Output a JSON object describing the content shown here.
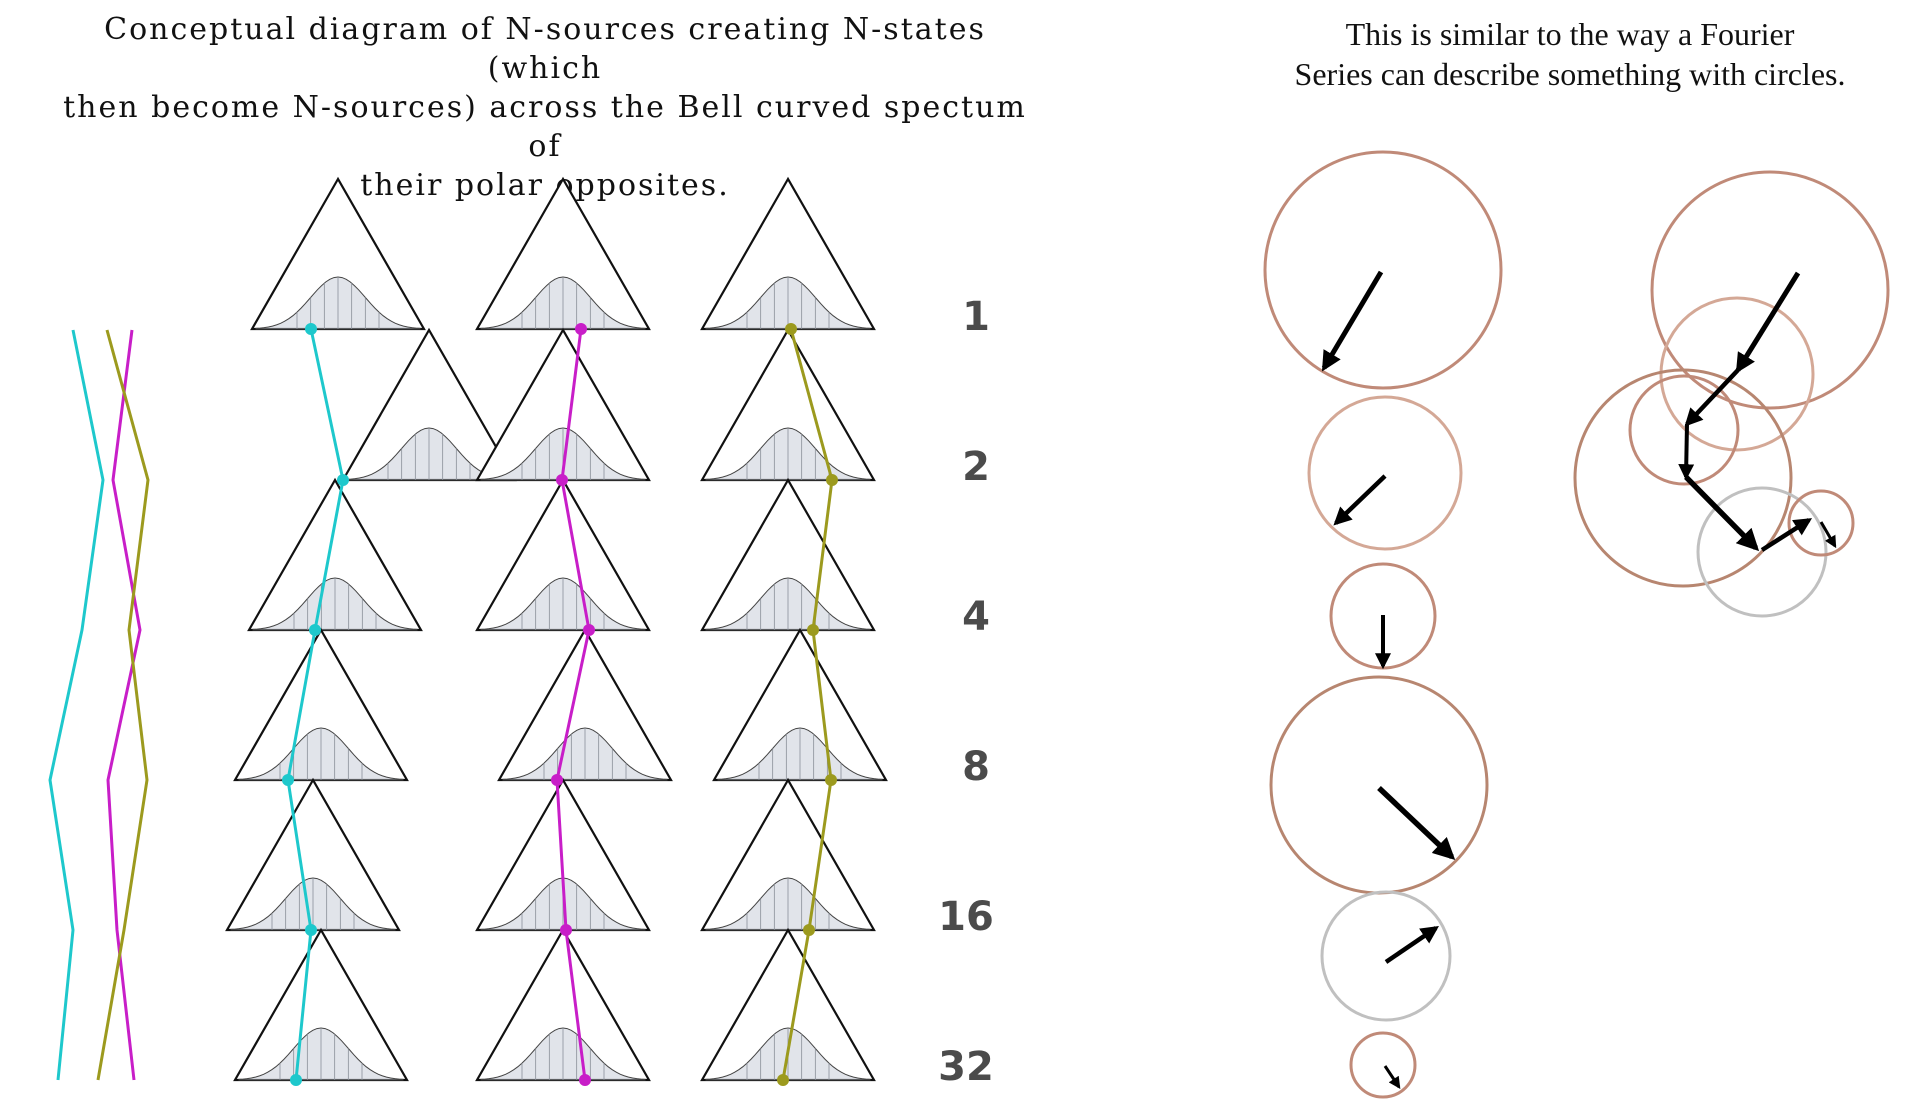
{
  "left_title": {
    "line1": "Conceptual diagram of N-sources creating N-states (which",
    "line2": "then become N-sources) across the Bell curved spectum of",
    "line3": "their polar opposites."
  },
  "right_title": {
    "line1": "This is similar to the way a Fourier",
    "line2": "Series can describe something with circles."
  },
  "levels": [
    "1",
    "2",
    "4",
    "8",
    "16",
    "32"
  ],
  "colors": {
    "cyan": "#1ec8cc",
    "magenta": "#c81ec8",
    "olive": "#9c9a1e",
    "triangle": "#111111",
    "bell_fill": "#c9ced8",
    "circle_brown": "#c08a78",
    "circle_gray": "#c0c0c0",
    "arrow": "#000000"
  },
  "icons": [
    "triangle-icon",
    "bell-curve-icon",
    "circle-icon",
    "arrow-icon"
  ]
}
